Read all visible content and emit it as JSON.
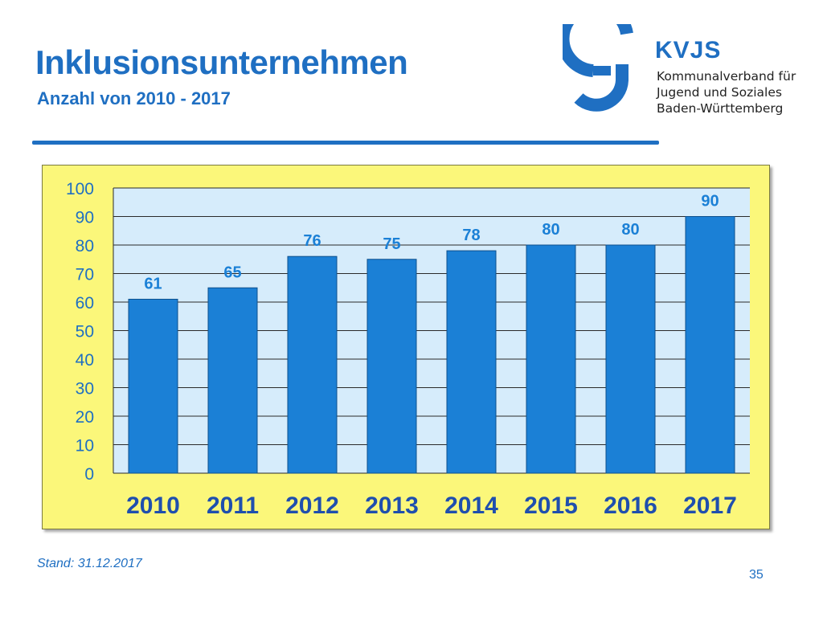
{
  "slide": {
    "title": "Inklusionsunternehmen",
    "subtitle": "Anzahl von 2010 - 2017",
    "footnote": "Stand: 31.12.2017",
    "page_number": "35"
  },
  "logo": {
    "name": "KVJS",
    "lines": [
      "Kommunalverband für",
      "Jugend und Soziales",
      "Baden-Württemberg"
    ]
  },
  "colors": {
    "accent": "#1f6fc2",
    "bar": "#1b80d6",
    "panel": "#fbf77a",
    "plot": "#d6ecfb"
  },
  "chart_data": {
    "type": "bar",
    "categories": [
      "2010",
      "2011",
      "2012",
      "2013",
      "2014",
      "2015",
      "2016",
      "2017"
    ],
    "values": [
      61,
      65,
      76,
      75,
      78,
      80,
      80,
      90
    ],
    "ylim": [
      0,
      100
    ],
    "yticks": [
      0,
      10,
      20,
      30,
      40,
      50,
      60,
      70,
      80,
      90,
      100
    ],
    "grid": true,
    "data_labels": true
  }
}
